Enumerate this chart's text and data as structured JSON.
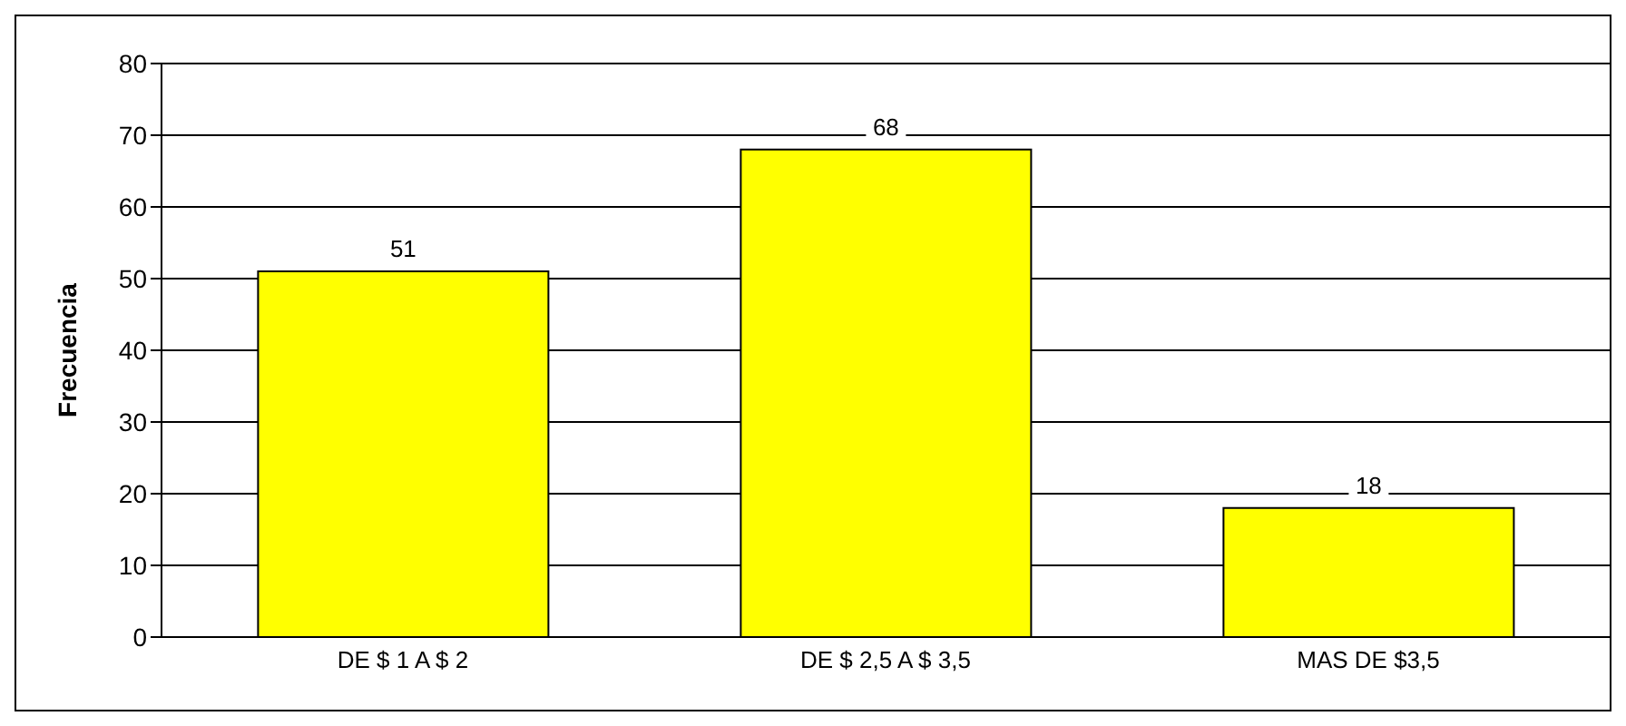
{
  "chart_data": {
    "type": "bar",
    "ylabel": "Frecuencia",
    "categories": [
      "DE $ 1 A $ 2",
      "DE $ 2,5 A $ 3,5",
      "MAS DE $3,5"
    ],
    "values": [
      51,
      68,
      18
    ],
    "color": "#ffff00",
    "ylim": [
      0,
      80
    ],
    "yticks": [
      0,
      10,
      20,
      30,
      40,
      50,
      60,
      70,
      80
    ],
    "grid": "y",
    "data_labels": true
  }
}
